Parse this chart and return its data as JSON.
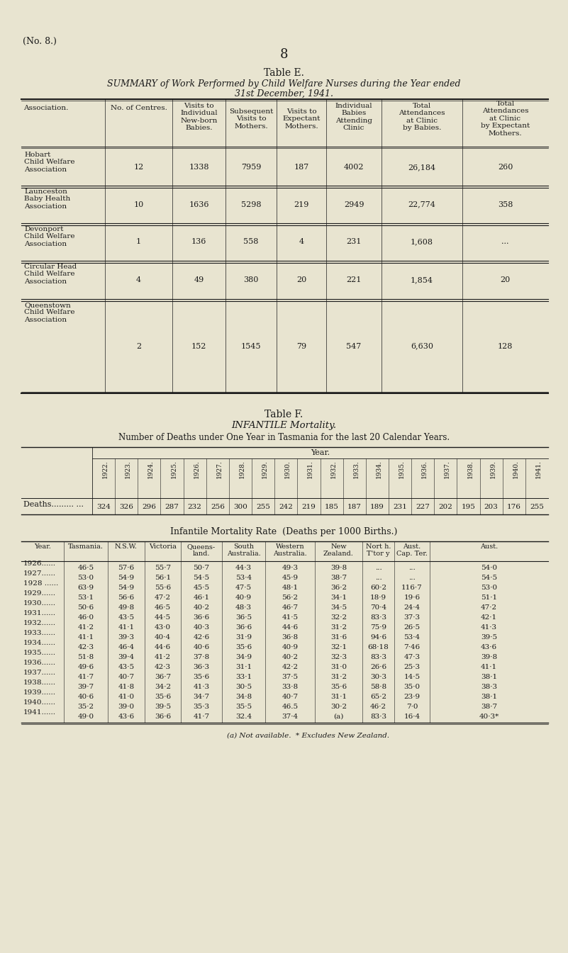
{
  "bg_color": "#e8e4d0",
  "text_color": "#1a1a1a",
  "page_number": "8",
  "no_label": "(No. 8.)",
  "table_e_title": "Table E.",
  "table_e_subtitle_1": "SUMMARY of Work Performed by Child Welfare Nurses during the Year ended",
  "table_e_subtitle_2": "31st December, 1941.",
  "table_e_rows": [
    [
      "Hobart\nChild Welfare\nAssociation",
      "12",
      "1338",
      "7959",
      "187",
      "4002",
      "26,184",
      "260"
    ],
    [
      "Launceston\nBaby Health\nAssociation",
      "10",
      "1636",
      "5298",
      "219",
      "2949",
      "22,774",
      "358"
    ],
    [
      "Devonport\nChild Welfare\nAssociation",
      "1",
      "136",
      "558",
      "4",
      "231",
      "1,608",
      "..."
    ],
    [
      "Circular Head\nChild Welfare\nAssociation",
      "4",
      "49",
      "380",
      "20",
      "221",
      "1,854",
      "20"
    ],
    [
      "Queenstown\nChild Welfare\nAssociation",
      "2",
      "152",
      "1545",
      "79",
      "547",
      "6,630",
      "128"
    ]
  ],
  "table_f_title": "Table F.",
  "table_f_subtitle": "INFANTILE Mortality.",
  "table_f_desc": "Number of Deaths under One Year in Tasmania for the last 20 Calendar Years.",
  "deaths_years": [
    "1922.",
    "1923.",
    "1924.",
    "1925.",
    "1926.",
    "1927.",
    "1928.",
    "1929.",
    "1930.",
    "1931.",
    "1932.",
    "1933.",
    "1934.",
    "1935.",
    "1936.",
    "1937.",
    "1938.",
    "1939.",
    "1940.",
    "1941."
  ],
  "deaths_values": [
    "324",
    "326",
    "296",
    "287",
    "232",
    "256",
    "300",
    "255",
    "242",
    "219",
    "185",
    "187",
    "189",
    "231",
    "227",
    "202",
    "195",
    "203",
    "176",
    "255"
  ],
  "mortality_title": "Infantile Mortality Rate  (Deaths per 1000 Births.)",
  "mortality_rows": [
    [
      "1926......",
      "46·5",
      "57·6",
      "55·7",
      "50·7",
      "44·3",
      "49·3",
      "39·8",
      "...",
      "...",
      "54·0"
    ],
    [
      "1927......",
      "53·0",
      "54·9",
      "56·1",
      "54·5",
      "53·4",
      "45·9",
      "38·7",
      "...",
      "...",
      "54·5"
    ],
    [
      "1928 ......",
      "63·9",
      "54·9",
      "55·6",
      "45·5",
      "47·5",
      "48·1",
      "36·2",
      "60·2",
      "116·7",
      "53·0"
    ],
    [
      "1929......",
      "53·1",
      "56·6",
      "47·2",
      "46·1",
      "40·9",
      "56·2",
      "34·1",
      "18·9",
      "19·6",
      "51·1"
    ],
    [
      "1930......",
      "50·6",
      "49·8",
      "46·5",
      "40·2",
      "48·3",
      "46·7",
      "34·5",
      "70·4",
      "24·4",
      "47·2"
    ],
    [
      "1931......",
      "46·0",
      "43·5",
      "44·5",
      "36·6",
      "36·5",
      "41·5",
      "32·2",
      "83·3",
      "37·3",
      "42·1"
    ],
    [
      "1932......",
      "41·2",
      "41·1",
      "43·0",
      "40·3",
      "36·6",
      "44·6",
      "31·2",
      "75·9",
      "26·5",
      "41·3"
    ],
    [
      "1933......",
      "41·1",
      "39·3",
      "40·4",
      "42·6",
      "31·9",
      "36·8",
      "31·6",
      "94·6",
      "53·4",
      "39·5"
    ],
    [
      "1934......",
      "42·3",
      "46·4",
      "44·6",
      "40·6",
      "35·6",
      "40·9",
      "32·1",
      "68·18",
      "7·46",
      "43·6"
    ],
    [
      "1935......",
      "51·8",
      "39·4",
      "41·2",
      "37·8",
      "34·9",
      "40·2",
      "32·3",
      "83·3",
      "47·3",
      "39·8"
    ],
    [
      "1936......",
      "49·6",
      "43·5",
      "42·3",
      "36·3",
      "31·1",
      "42·2",
      "31·0",
      "26·6",
      "25·3",
      "41·1"
    ],
    [
      "1937......",
      "41·7",
      "40·7",
      "36·7",
      "35·6",
      "33·1",
      "37·5",
      "31·2",
      "30·3",
      "14·5",
      "38·1"
    ],
    [
      "1938......",
      "39·7",
      "41·8",
      "34·2",
      "41·3",
      "30·5",
      "33·8",
      "35·6",
      "58·8",
      "35·0",
      "38·3"
    ],
    [
      "1939......",
      "40·6",
      "41·0",
      "35·6",
      "34·7",
      "34·8",
      "40·7",
      "31·1",
      "65·2",
      "23·9",
      "38·1"
    ],
    [
      "1940......",
      "35·2",
      "39·0",
      "39·5",
      "35·3",
      "35·5",
      "46.5",
      "30·2",
      "46·2",
      "7·0",
      "38·7"
    ],
    [
      "1941......",
      "49·0",
      "43·6",
      "36·6",
      "41·7",
      "32.4",
      "37·4",
      "(a)",
      "83·3",
      "16·4",
      "40·3*"
    ]
  ],
  "footnote": "(a) Not available.  * Excludes New Zealand."
}
